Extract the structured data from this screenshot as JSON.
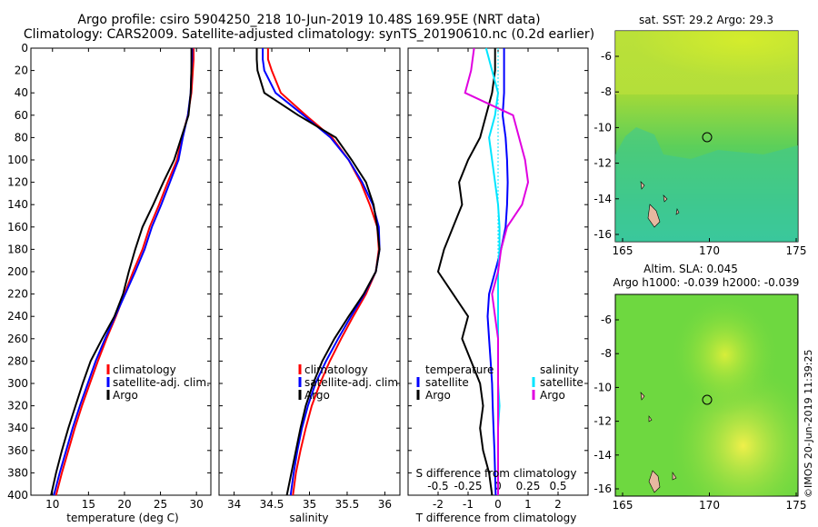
{
  "title": {
    "line1": "Argo profile: csiro 5904250_218 10-Jun-2019 10.48S 169.95E (NRT data)",
    "line2": "Climatology: CARS2009. Satellite-adjusted climatology: synTS_20190610.nc (0.2d earlier)"
  },
  "colors": {
    "climatology": "#ff0000",
    "satellite": "#0000ff",
    "argo": "#000000",
    "sal_satellite": "#00e5ff",
    "sal_climatology": "#e000e0"
  },
  "chart_data": [
    {
      "type": "line",
      "id": "temperature",
      "xlabel": "temperature (deg C)",
      "ylabel": "",
      "xlim": [
        7,
        32
      ],
      "ylim": [
        400,
        0
      ],
      "xticks": [
        10,
        15,
        20,
        25,
        30
      ],
      "yticks": [
        0,
        20,
        40,
        60,
        80,
        100,
        120,
        140,
        160,
        180,
        200,
        220,
        240,
        260,
        280,
        300,
        320,
        340,
        360,
        380,
        400
      ],
      "legend": [
        "climatology",
        "satellite-adj. clim.",
        "Argo"
      ],
      "series": [
        {
          "name": "climatology",
          "color": "#ff0000",
          "x": [
            29.6,
            29.6,
            29.5,
            29.3,
            28.8,
            28.0,
            27.3,
            26.0,
            24.8,
            23.5,
            22.5,
            21.2,
            20.0,
            18.8,
            17.5,
            16.3,
            15.2,
            14.1,
            13.1,
            12.2,
            11.3,
            10.5
          ],
          "y": [
            0,
            10,
            20,
            40,
            60,
            80,
            100,
            120,
            140,
            160,
            180,
            200,
            220,
            240,
            260,
            280,
            300,
            320,
            340,
            360,
            380,
            400
          ]
        },
        {
          "name": "satellite-adj. clim.",
          "color": "#0000ff",
          "x": [
            29.4,
            29.4,
            29.3,
            29.2,
            28.8,
            28.1,
            27.5,
            26.3,
            25.1,
            23.8,
            22.8,
            21.5,
            20.1,
            18.7,
            17.3,
            16.0,
            14.9,
            13.8,
            12.8,
            11.9,
            11.0,
            10.2
          ],
          "y": [
            0,
            10,
            20,
            40,
            60,
            80,
            100,
            120,
            140,
            160,
            180,
            200,
            220,
            240,
            260,
            280,
            300,
            320,
            340,
            360,
            380,
            400
          ]
        },
        {
          "name": "Argo",
          "color": "#000000",
          "x": [
            29.3,
            29.3,
            29.3,
            29.2,
            28.9,
            27.9,
            26.9,
            25.4,
            24.0,
            22.5,
            21.5,
            20.6,
            19.8,
            18.6,
            16.9,
            15.3,
            14.2,
            13.2,
            12.2,
            11.3,
            10.5,
            9.8
          ],
          "y": [
            0,
            10,
            20,
            40,
            60,
            80,
            100,
            120,
            140,
            160,
            180,
            200,
            220,
            240,
            260,
            280,
            300,
            320,
            340,
            360,
            380,
            400
          ]
        }
      ]
    },
    {
      "type": "line",
      "id": "salinity",
      "xlabel": "salinity",
      "xlim": [
        33.8,
        36.2
      ],
      "ylim": [
        400,
        0
      ],
      "xticks": [
        34,
        34.5,
        35,
        35.5,
        36
      ],
      "legend": [
        "climatology",
        "satellite-adj. clim.",
        "Argo"
      ],
      "series": [
        {
          "name": "climatology",
          "color": "#ff0000",
          "x": [
            34.45,
            34.45,
            34.5,
            34.62,
            34.95,
            35.3,
            35.52,
            35.68,
            35.8,
            35.9,
            35.92,
            35.88,
            35.75,
            35.58,
            35.42,
            35.27,
            35.14,
            35.03,
            34.95,
            34.88,
            34.82,
            34.78
          ],
          "y": [
            0,
            10,
            20,
            40,
            60,
            80,
            100,
            120,
            140,
            160,
            180,
            200,
            220,
            240,
            260,
            280,
            300,
            320,
            340,
            360,
            380,
            400
          ]
        },
        {
          "name": "satellite-adj. clim.",
          "color": "#0000ff",
          "x": [
            34.38,
            34.38,
            34.4,
            34.55,
            34.92,
            35.28,
            35.52,
            35.7,
            35.84,
            35.92,
            35.93,
            35.88,
            35.73,
            35.55,
            35.38,
            35.22,
            35.08,
            34.98,
            34.9,
            34.84,
            34.79,
            34.75
          ],
          "y": [
            0,
            10,
            20,
            40,
            60,
            80,
            100,
            120,
            140,
            160,
            180,
            200,
            220,
            240,
            260,
            280,
            300,
            320,
            340,
            360,
            380,
            400
          ]
        },
        {
          "name": "Argo",
          "color": "#000000",
          "x": [
            34.3,
            34.3,
            34.31,
            34.4,
            34.85,
            35.35,
            35.56,
            35.75,
            35.85,
            35.9,
            35.93,
            35.88,
            35.72,
            35.52,
            35.33,
            35.17,
            35.05,
            34.95,
            34.88,
            34.82,
            34.76,
            34.7
          ],
          "y": [
            0,
            10,
            20,
            40,
            60,
            80,
            100,
            120,
            140,
            160,
            180,
            200,
            220,
            240,
            260,
            280,
            300,
            320,
            340,
            360,
            380,
            400
          ]
        }
      ]
    },
    {
      "type": "line",
      "id": "difference",
      "xlabel": "T difference from climatology",
      "xlabel_top": "S difference from climatology",
      "xlim": [
        -3,
        3
      ],
      "ylim": [
        400,
        0
      ],
      "xticks": [
        -2,
        -1,
        0,
        1,
        2
      ],
      "sticks_labels": [
        "-0.5",
        "-0.25",
        "0",
        "0.25",
        "0.5"
      ],
      "sticks_values": [
        -2,
        -1,
        0,
        1,
        2
      ],
      "legend_left_title": "temperature",
      "legend_right_title": "salinity",
      "legend_left": [
        "satellite",
        "Argo"
      ],
      "legend_right": [
        "satellite",
        "Argo"
      ],
      "series": [
        {
          "name": "temperature satellite",
          "color": "#0000ff",
          "x": [
            0.2,
            0.2,
            0.2,
            0.15,
            0.25,
            0.3,
            0.32,
            0.3,
            0.25,
            0.1,
            -0.1,
            -0.3,
            -0.35,
            -0.3,
            -0.25,
            -0.2,
            -0.18,
            -0.15,
            -0.12,
            -0.1,
            -0.08
          ],
          "y": [
            0,
            20,
            40,
            60,
            80,
            100,
            120,
            140,
            160,
            180,
            200,
            220,
            240,
            260,
            280,
            300,
            320,
            340,
            360,
            380,
            400
          ]
        },
        {
          "name": "temperature Argo",
          "color": "#000000",
          "x": [
            -0.1,
            -0.1,
            -0.2,
            -0.4,
            -0.6,
            -1.0,
            -1.3,
            -1.2,
            -1.5,
            -1.8,
            -2.0,
            -1.5,
            -1.0,
            -1.2,
            -0.9,
            -0.6,
            -0.5,
            -0.6,
            -0.5,
            -0.3,
            -0.2
          ],
          "y": [
            0,
            20,
            40,
            60,
            80,
            100,
            120,
            140,
            160,
            180,
            200,
            220,
            240,
            260,
            280,
            300,
            320,
            340,
            360,
            380,
            400
          ]
        },
        {
          "name": "salinity satellite",
          "color": "#00e5ff",
          "x": [
            -0.4,
            -0.2,
            0.0,
            -0.1,
            -0.3,
            -0.2,
            -0.1,
            0.0,
            0.05,
            0.05,
            0.0,
            0.0,
            0.0,
            0.0,
            0.0,
            0.0,
            0.05,
            0.0,
            0.0,
            0.0,
            0.0
          ],
          "y": [
            0,
            20,
            40,
            60,
            80,
            100,
            120,
            140,
            160,
            180,
            200,
            220,
            240,
            260,
            280,
            300,
            320,
            340,
            360,
            380,
            400
          ]
        },
        {
          "name": "salinity Argo",
          "color": "#e000e0",
          "x": [
            -0.8,
            -0.9,
            -1.1,
            0.5,
            0.7,
            0.9,
            1.0,
            0.8,
            0.3,
            0.1,
            0.0,
            -0.2,
            -0.1,
            0.0,
            0.0,
            0.0,
            0.0,
            0.0,
            0.0,
            0.0,
            0.0
          ],
          "y": [
            0,
            20,
            40,
            60,
            80,
            100,
            120,
            140,
            160,
            180,
            200,
            220,
            240,
            260,
            280,
            300,
            320,
            340,
            360,
            380,
            400
          ]
        }
      ]
    }
  ],
  "maps": [
    {
      "id": "sst",
      "title": "sat. SST: 29.2 Argo: 29.3",
      "title2": "",
      "xticks": [
        "165",
        "170",
        "175"
      ],
      "yticks": [
        "-6",
        "-8",
        "-10",
        "-12",
        "-14",
        "-16"
      ]
    },
    {
      "id": "sla",
      "title": "Altim. SLA: 0.045",
      "title2": "Argo h1000: -0.039 h2000: -0.039",
      "xticks": [
        "165",
        "170",
        "175"
      ],
      "yticks": [
        "-6",
        "-8",
        "-10",
        "-12",
        "-14",
        "-16"
      ]
    }
  ],
  "watermark": "©IMOS 20-Jun-2019 11:39:25"
}
